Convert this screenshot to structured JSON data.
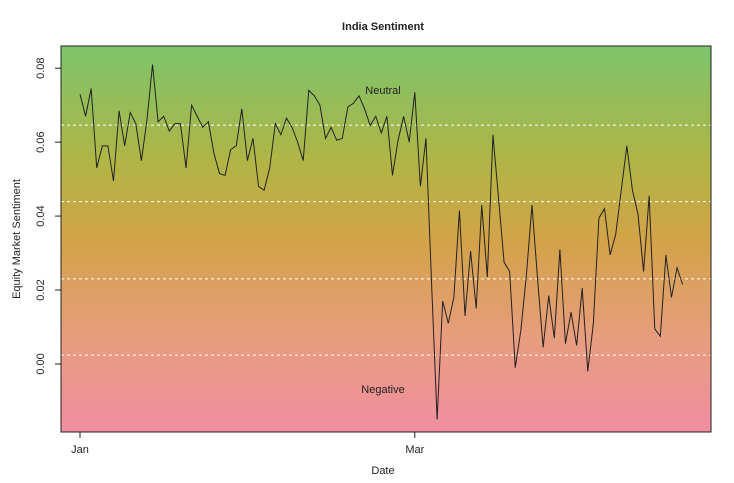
{
  "chart_data": {
    "type": "line",
    "title": "India Sentiment",
    "x_label": "Date",
    "y_label": "Equity Market Sentiment",
    "annotations": [
      "Neutral",
      "Negative"
    ],
    "categories": [
      "Jan",
      null,
      null,
      null,
      null,
      null,
      null,
      null,
      null,
      null,
      null,
      null,
      null,
      null,
      null,
      null,
      null,
      null,
      null,
      null,
      null,
      null,
      null,
      null,
      null,
      null,
      null,
      null,
      null,
      null,
      null,
      null,
      null,
      null,
      null,
      null,
      null,
      null,
      null,
      null,
      null,
      null,
      null,
      null,
      null,
      null,
      null,
      null,
      null,
      null,
      null,
      null,
      null,
      null,
      null,
      null,
      null,
      null,
      null,
      null,
      "Mar",
      null,
      null,
      null,
      null,
      null,
      null,
      null,
      null,
      null,
      null,
      null,
      null,
      null,
      null,
      null,
      null,
      null,
      null,
      null,
      null,
      null,
      null,
      null,
      null,
      null,
      null,
      null,
      null,
      null,
      null,
      null,
      null,
      null,
      null,
      null,
      null,
      null,
      null,
      null,
      null,
      null,
      null,
      null,
      null,
      null,
      null,
      null,
      null
    ],
    "series": [
      {
        "name": "India",
        "color": "#222222",
        "values": [
          0.073,
          0.067,
          0.0745,
          0.053,
          0.059,
          0.059,
          0.0495,
          0.0685,
          0.059,
          0.068,
          0.065,
          0.055,
          0.066,
          0.081,
          0.0655,
          0.067,
          0.063,
          0.065,
          0.065,
          0.053,
          0.07,
          0.067,
          0.064,
          0.0655,
          0.057,
          0.0515,
          0.051,
          0.058,
          0.059,
          0.069,
          0.055,
          0.061,
          0.048,
          0.047,
          0.053,
          0.065,
          0.062,
          0.0665,
          0.064,
          0.06,
          0.055,
          0.074,
          0.0725,
          0.07,
          0.061,
          0.064,
          0.0605,
          0.061,
          0.0695,
          0.0705,
          0.0725,
          0.069,
          0.0645,
          0.067,
          0.0625,
          0.067,
          0.051,
          0.0605,
          0.067,
          0.06,
          0.0735,
          0.048,
          0.061,
          0.022,
          -0.015,
          0.017,
          0.011,
          0.018,
          0.0415,
          0.013,
          0.0305,
          0.015,
          0.043,
          0.0235,
          0.062,
          0.045,
          0.0275,
          0.025,
          -0.001,
          0.009,
          0.024,
          0.043,
          0.023,
          0.0045,
          0.0185,
          0.007,
          0.031,
          0.0055,
          0.014,
          0.005,
          0.0205,
          -0.002,
          0.011,
          0.0395,
          0.042,
          0.0295,
          0.035,
          0.047,
          0.059,
          0.047,
          0.0405,
          0.025,
          0.0455,
          0.0095,
          0.0075,
          0.0295,
          0.018,
          0.026,
          0.0215
        ]
      }
    ],
    "reference_lines": [
      0.0646,
      0.0439,
      0.023,
      0.0024
    ],
    "ylim": [
      -0.0184,
      0.086
    ],
    "yticks": [
      {
        "value": 0,
        "label": "0.00"
      },
      {
        "value": 0.02,
        "label": "0.02"
      },
      {
        "value": 0.04,
        "label": "0.04"
      },
      {
        "value": 0.06,
        "label": "0.06"
      },
      {
        "value": 0.08,
        "label": "0.08"
      }
    ]
  }
}
